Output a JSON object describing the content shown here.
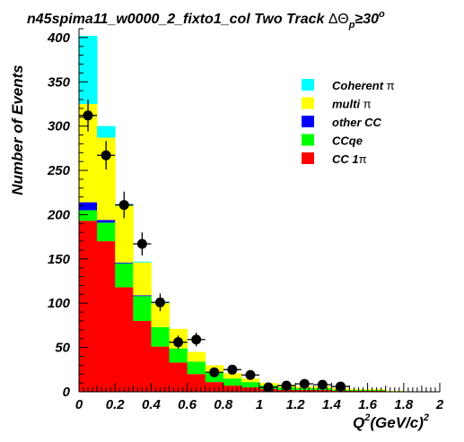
{
  "chart_data": {
    "type": "bar",
    "stacked": true,
    "title_parts": {
      "prefix": "n45spima11_w0000_2_fixto1_col Two Track ",
      "theta": "ΔΘ",
      "sub": "p",
      "geq": "≥30",
      "sup": "o"
    },
    "ylabel": "Number of Events",
    "xlabel_parts": {
      "q": "Q",
      "q_sup": "2",
      "mid": "(GeV/c)",
      "end_sup": "2"
    },
    "xlim": [
      0,
      2
    ],
    "ylim": [
      0,
      410
    ],
    "x_ticks": [
      {
        "value": 0,
        "label": "0"
      },
      {
        "value": 0.2,
        "label": "0.2"
      },
      {
        "value": 0.4,
        "label": "0.4"
      },
      {
        "value": 0.6,
        "label": "0.6"
      },
      {
        "value": 0.8,
        "label": "0.8"
      },
      {
        "value": 1.0,
        "label": "1"
      },
      {
        "value": 1.2,
        "label": "1.2"
      },
      {
        "value": 1.4,
        "label": "1.4"
      },
      {
        "value": 1.6,
        "label": "1.6"
      },
      {
        "value": 1.8,
        "label": "1.8"
      },
      {
        "value": 2.0,
        "label": "2"
      }
    ],
    "y_ticks": [
      {
        "value": 0,
        "label": "0"
      },
      {
        "value": 50,
        "label": "50"
      },
      {
        "value": 100,
        "label": "100"
      },
      {
        "value": 150,
        "label": "150"
      },
      {
        "value": 200,
        "label": "200"
      },
      {
        "value": 250,
        "label": "250"
      },
      {
        "value": 300,
        "label": "300"
      },
      {
        "value": 350,
        "label": "350"
      },
      {
        "value": 400,
        "label": "400"
      }
    ],
    "bin_edges": [
      0,
      0.1,
      0.2,
      0.3,
      0.4,
      0.5,
      0.6,
      0.7,
      0.8,
      0.9,
      1.0,
      1.1,
      1.2,
      1.3,
      1.4,
      1.5,
      1.6,
      1.7,
      1.8,
      1.9,
      2.0
    ],
    "series": [
      {
        "name_parts": {
          "text": "CC 1",
          "pi": "π"
        },
        "color": "#ff0000",
        "values": [
          193,
          170,
          118,
          80,
          51,
          33,
          20,
          11,
          7,
          5,
          3,
          2,
          2,
          2,
          1,
          1,
          1,
          0,
          0,
          0
        ]
      },
      {
        "name_parts": {
          "text": "CCqe",
          "pi": ""
        },
        "color": "#00ff00",
        "values": [
          12,
          21,
          27,
          28,
          22,
          16,
          14,
          11,
          8,
          6,
          4,
          3,
          2,
          2,
          1,
          1,
          1,
          0,
          0,
          0
        ]
      },
      {
        "name_parts": {
          "text": "other CC",
          "pi": ""
        },
        "color": "#0000ff",
        "values": [
          9,
          3,
          1,
          1,
          0,
          0,
          0,
          0,
          0,
          0,
          0,
          0,
          0,
          0,
          0,
          0,
          0,
          0,
          0,
          0
        ]
      },
      {
        "name_parts": {
          "text": "multi ",
          "pi": "π"
        },
        "color": "#ffff00",
        "values": [
          111,
          93,
          64,
          37,
          27,
          22,
          11,
          8,
          6,
          4,
          3,
          3,
          2,
          2,
          2,
          1,
          1,
          1,
          0,
          0
        ]
      },
      {
        "name_parts": {
          "text": "Coherent ",
          "pi": "π"
        },
        "color": "#00ffff",
        "values": [
          77,
          13,
          2,
          1,
          1,
          0,
          0,
          0,
          0,
          0,
          0,
          0,
          0,
          0,
          0,
          0,
          0,
          0,
          0,
          0
        ]
      }
    ],
    "legend_order": [
      4,
      3,
      2,
      1,
      0
    ],
    "legend_position": "top-right",
    "data_points": [
      {
        "x": 0.05,
        "y": 312,
        "err": 18
      },
      {
        "x": 0.15,
        "y": 267,
        "err": 16
      },
      {
        "x": 0.25,
        "y": 211,
        "err": 15
      },
      {
        "x": 0.35,
        "y": 167,
        "err": 13
      },
      {
        "x": 0.45,
        "y": 101,
        "err": 10
      },
      {
        "x": 0.55,
        "y": 56,
        "err": 7.5
      },
      {
        "x": 0.65,
        "y": 59,
        "err": 7.7
      },
      {
        "x": 0.75,
        "y": 22,
        "err": 4.7
      },
      {
        "x": 0.85,
        "y": 25,
        "err": 5
      },
      {
        "x": 0.95,
        "y": 19,
        "err": 4.4
      },
      {
        "x": 1.05,
        "y": 5,
        "err": 2.2
      },
      {
        "x": 1.15,
        "y": 7,
        "err": 2.6
      },
      {
        "x": 1.25,
        "y": 9,
        "err": 3
      },
      {
        "x": 1.35,
        "y": 8,
        "err": 2.8
      },
      {
        "x": 1.45,
        "y": 6,
        "err": 2.4
      }
    ]
  }
}
